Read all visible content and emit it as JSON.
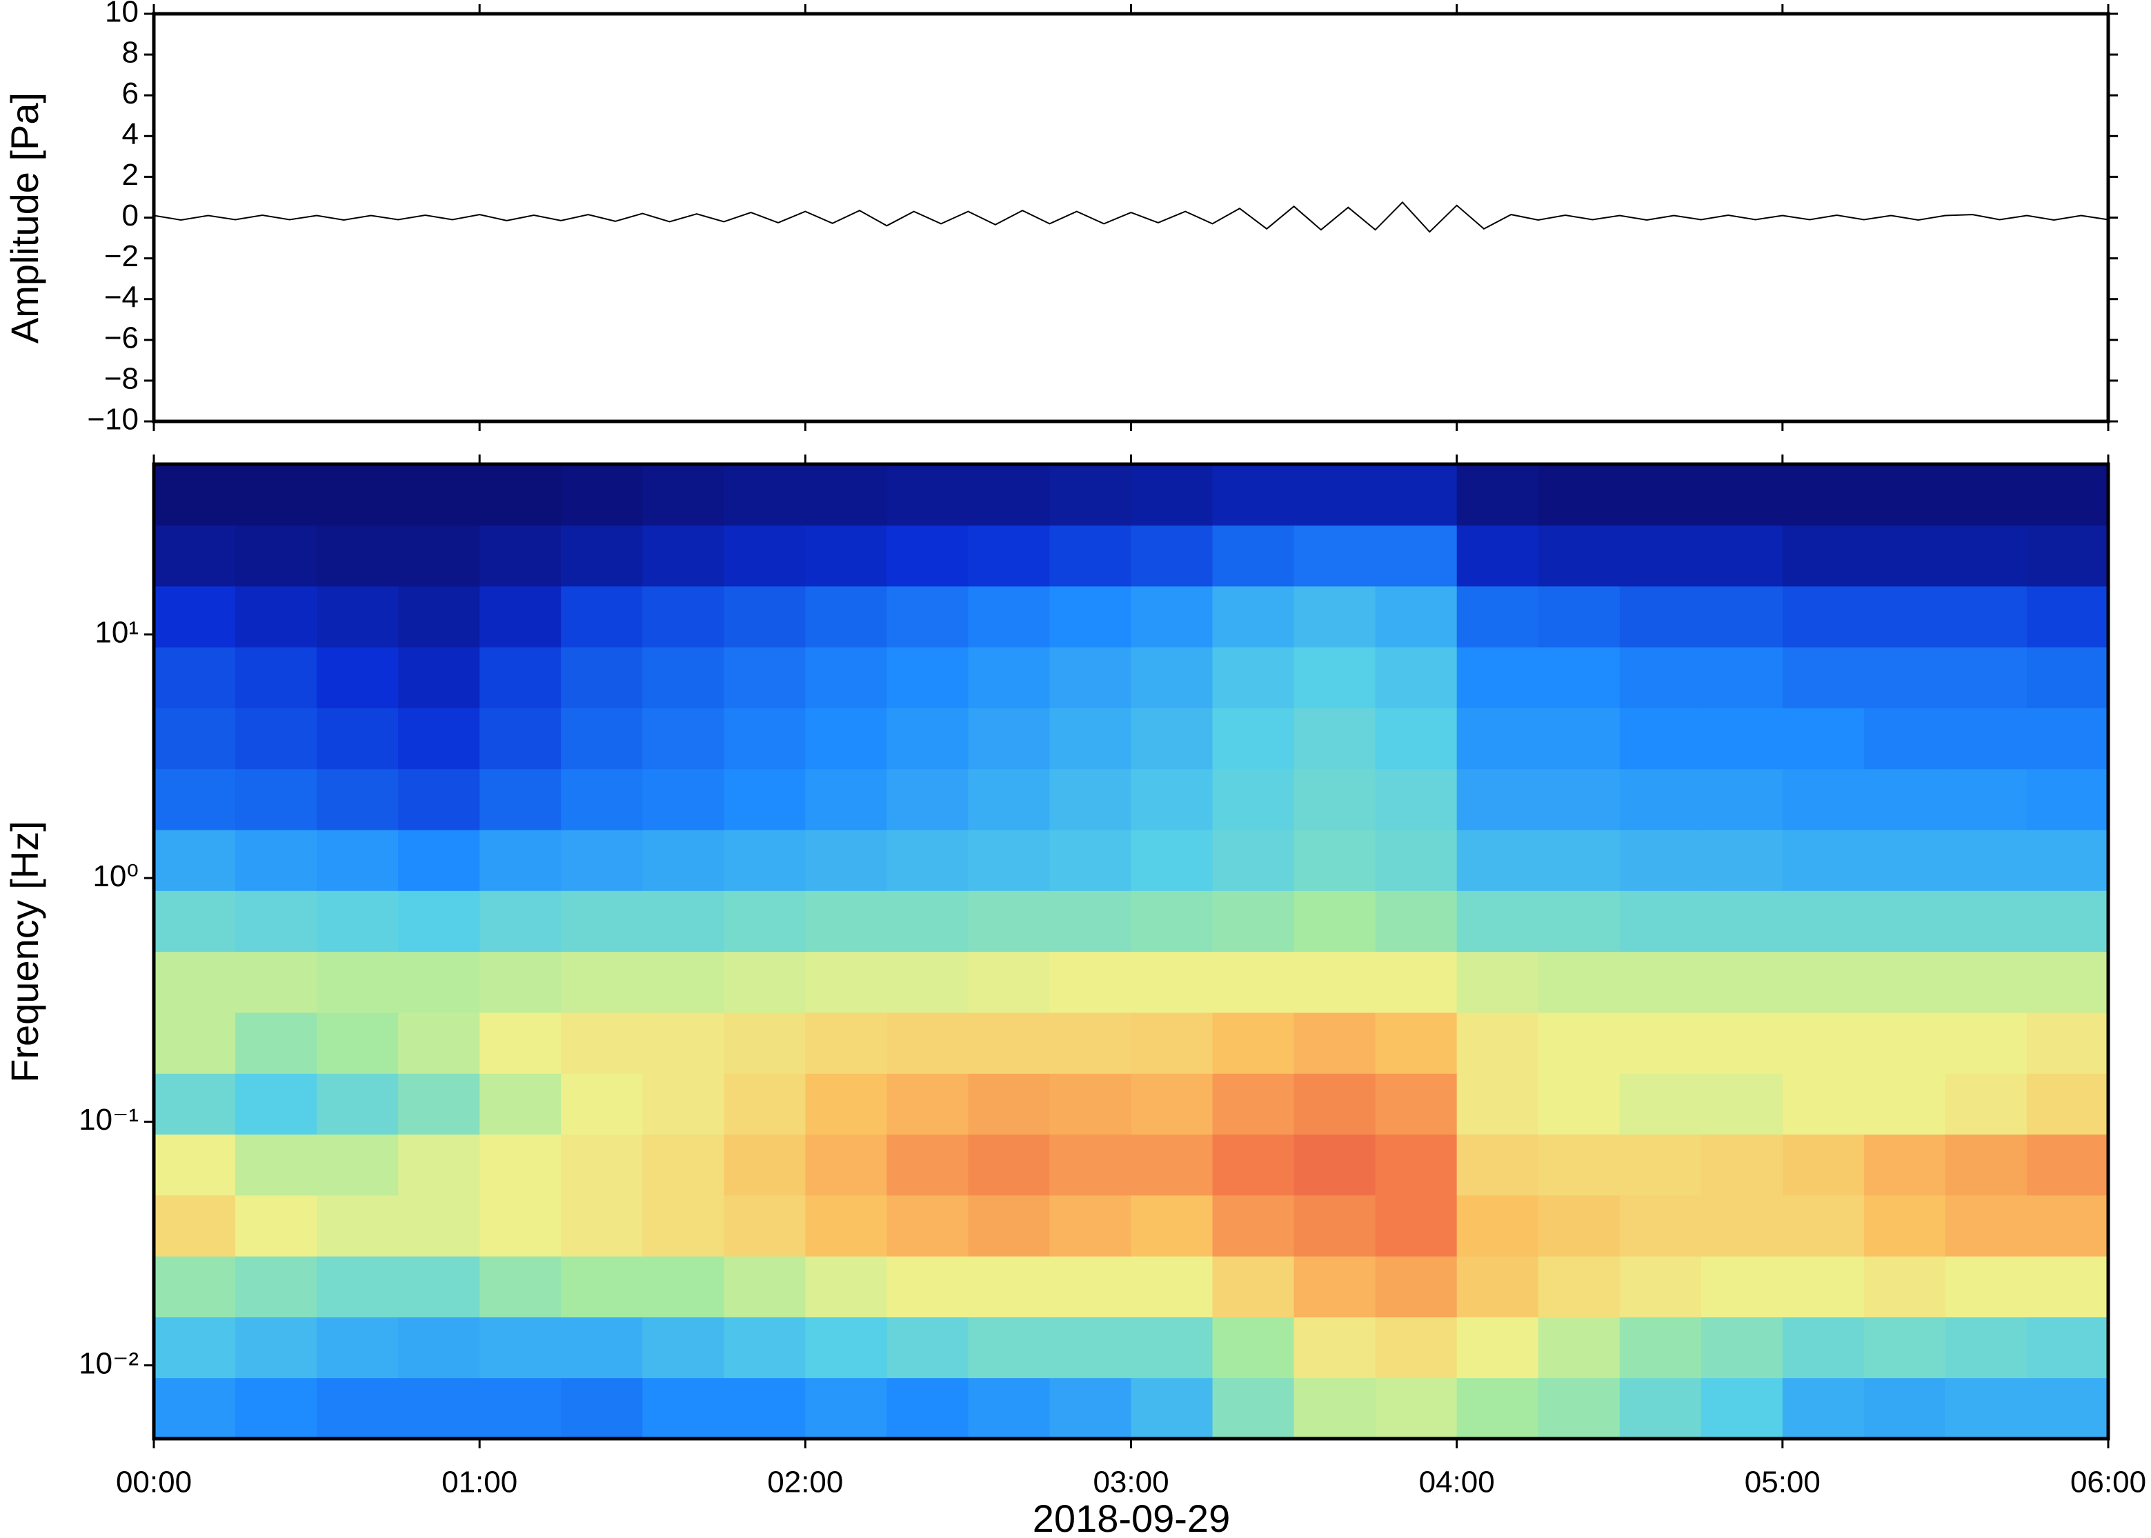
{
  "chart_data": [
    {
      "type": "line",
      "ylabel": "Amplitude [Pa]",
      "color": "#000000",
      "xlim": [
        0,
        360
      ],
      "ylim": [
        -10,
        10
      ],
      "yticks": [
        {
          "value": -10,
          "label": "−10"
        },
        {
          "value": -8,
          "label": "−8"
        },
        {
          "value": -6,
          "label": "−6"
        },
        {
          "value": -4,
          "label": "−4"
        },
        {
          "value": -2,
          "label": "−2"
        },
        0,
        2,
        4,
        6,
        8,
        10
      ],
      "x": [
        0,
        5,
        10,
        15,
        20,
        25,
        30,
        35,
        40,
        45,
        50,
        55,
        60,
        65,
        70,
        75,
        80,
        85,
        90,
        95,
        100,
        105,
        110,
        115,
        120,
        125,
        130,
        135,
        140,
        145,
        150,
        155,
        160,
        165,
        170,
        175,
        180,
        185,
        190,
        195,
        200,
        205,
        210,
        215,
        220,
        225,
        230,
        235,
        240,
        245,
        250,
        255,
        260,
        265,
        270,
        275,
        280,
        285,
        290,
        295,
        300,
        305,
        310,
        315,
        320,
        325,
        330,
        335,
        340,
        345,
        350,
        355,
        360
      ],
      "values": [
        0.1,
        -0.12,
        0.1,
        -0.1,
        0.12,
        -0.1,
        0.1,
        -0.12,
        0.1,
        -0.1,
        0.12,
        -0.1,
        0.15,
        -0.15,
        0.12,
        -0.15,
        0.15,
        -0.18,
        0.2,
        -0.2,
        0.18,
        -0.2,
        0.25,
        -0.25,
        0.3,
        -0.28,
        0.35,
        -0.4,
        0.3,
        -0.3,
        0.3,
        -0.35,
        0.35,
        -0.3,
        0.3,
        -0.3,
        0.25,
        -0.25,
        0.3,
        -0.3,
        0.45,
        -0.55,
        0.55,
        -0.6,
        0.5,
        -0.6,
        0.75,
        -0.7,
        0.6,
        -0.55,
        0.15,
        -0.12,
        0.12,
        -0.1,
        0.1,
        -0.12,
        0.1,
        -0.1,
        0.12,
        -0.1,
        0.1,
        -0.1,
        0.12,
        -0.1,
        0.1,
        -0.12,
        0.1,
        0.15,
        -0.1,
        0.1,
        -0.12,
        0.1,
        -0.1
      ]
    },
    {
      "type": "heatmap",
      "ylabel": "Frequency [Hz]",
      "xlabel": "2018-09-29",
      "log_y": true,
      "xlim": [
        0,
        360
      ],
      "xticks": [
        {
          "value": 0,
          "label": "00:00"
        },
        {
          "value": 60,
          "label": "01:00"
        },
        {
          "value": 120,
          "label": "02:00"
        },
        {
          "value": 180,
          "label": "03:00"
        },
        {
          "value": 240,
          "label": "04:00"
        },
        {
          "value": 300,
          "label": "05:00"
        },
        {
          "value": 360,
          "label": "06:00"
        }
      ],
      "ylim": [
        0.005,
        50
      ],
      "yticks": [
        {
          "value": 0.01,
          "label": "10⁻²"
        },
        {
          "value": 0.1,
          "label": "10⁻¹"
        },
        {
          "value": 1,
          "label": "10⁰"
        },
        {
          "value": 10,
          "label": "10¹"
        }
      ],
      "xbins": [
        0,
        15,
        30,
        45,
        60,
        75,
        90,
        105,
        120,
        135,
        150,
        165,
        180,
        195,
        210,
        225,
        240,
        255,
        270,
        285,
        300,
        315,
        330,
        345,
        360
      ],
      "ybins": [
        0.005,
        0.0089,
        0.0158,
        0.0281,
        0.05,
        0.0889,
        0.158,
        0.281,
        0.5,
        0.889,
        1.58,
        2.81,
        5,
        8.89,
        15.8,
        28.1,
        50
      ],
      "zlim": [
        0,
        1
      ],
      "colorscale": [
        [
          0,
          "#0b0b6b"
        ],
        [
          0.15,
          "#0a2fd6"
        ],
        [
          0.3,
          "#1e8cff"
        ],
        [
          0.42,
          "#56cfe8"
        ],
        [
          0.52,
          "#a6eaa2"
        ],
        [
          0.6,
          "#eef08c"
        ],
        [
          0.7,
          "#fbc262"
        ],
        [
          0.8,
          "#f47c4a"
        ],
        [
          0.9,
          "#dd3f3f"
        ],
        [
          1,
          "#a01010"
        ]
      ],
      "z": [
        [
          0.32,
          0.3,
          0.28,
          0.28,
          0.28,
          0.27,
          0.3,
          0.3,
          0.32,
          0.3,
          0.32,
          0.34,
          0.38,
          0.48,
          0.55,
          0.56,
          0.52,
          0.5,
          0.45,
          0.42,
          0.36,
          0.35,
          0.36,
          0.36
        ],
        [
          0.4,
          0.38,
          0.36,
          0.35,
          0.36,
          0.36,
          0.38,
          0.4,
          0.42,
          0.44,
          0.46,
          0.46,
          0.46,
          0.52,
          0.62,
          0.64,
          0.6,
          0.55,
          0.5,
          0.48,
          0.45,
          0.46,
          0.45,
          0.44
        ],
        [
          0.5,
          0.48,
          0.46,
          0.46,
          0.5,
          0.52,
          0.52,
          0.55,
          0.58,
          0.6,
          0.6,
          0.6,
          0.6,
          0.66,
          0.72,
          0.74,
          0.68,
          0.64,
          0.62,
          0.6,
          0.6,
          0.62,
          0.6,
          0.6
        ],
        [
          0.65,
          0.6,
          0.58,
          0.58,
          0.6,
          0.62,
          0.64,
          0.66,
          0.7,
          0.72,
          0.74,
          0.72,
          0.7,
          0.76,
          0.78,
          0.8,
          0.7,
          0.68,
          0.66,
          0.66,
          0.66,
          0.7,
          0.72,
          0.72
        ],
        [
          0.6,
          0.55,
          0.55,
          0.58,
          0.6,
          0.62,
          0.64,
          0.68,
          0.72,
          0.76,
          0.78,
          0.76,
          0.76,
          0.8,
          0.82,
          0.8,
          0.66,
          0.65,
          0.65,
          0.66,
          0.68,
          0.72,
          0.74,
          0.76
        ],
        [
          0.45,
          0.42,
          0.45,
          0.48,
          0.55,
          0.6,
          0.62,
          0.65,
          0.7,
          0.72,
          0.74,
          0.73,
          0.72,
          0.76,
          0.78,
          0.76,
          0.62,
          0.6,
          0.58,
          0.58,
          0.6,
          0.6,
          0.62,
          0.65
        ],
        [
          0.55,
          0.5,
          0.52,
          0.55,
          0.6,
          0.62,
          0.62,
          0.63,
          0.65,
          0.66,
          0.66,
          0.66,
          0.67,
          0.7,
          0.72,
          0.7,
          0.62,
          0.6,
          0.6,
          0.6,
          0.6,
          0.6,
          0.6,
          0.62
        ],
        [
          0.55,
          0.55,
          0.54,
          0.54,
          0.55,
          0.56,
          0.56,
          0.57,
          0.58,
          0.58,
          0.59,
          0.6,
          0.6,
          0.6,
          0.6,
          0.6,
          0.57,
          0.56,
          0.56,
          0.56,
          0.56,
          0.56,
          0.56,
          0.56
        ],
        [
          0.45,
          0.44,
          0.43,
          0.42,
          0.44,
          0.45,
          0.45,
          0.46,
          0.47,
          0.47,
          0.48,
          0.48,
          0.49,
          0.5,
          0.52,
          0.5,
          0.46,
          0.46,
          0.45,
          0.45,
          0.45,
          0.45,
          0.45,
          0.45
        ],
        [
          0.35,
          0.33,
          0.32,
          0.3,
          0.33,
          0.34,
          0.35,
          0.36,
          0.37,
          0.38,
          0.39,
          0.4,
          0.42,
          0.44,
          0.46,
          0.45,
          0.38,
          0.38,
          0.37,
          0.37,
          0.36,
          0.36,
          0.36,
          0.36
        ],
        [
          0.25,
          0.24,
          0.22,
          0.2,
          0.24,
          0.27,
          0.28,
          0.3,
          0.32,
          0.34,
          0.36,
          0.38,
          0.4,
          0.43,
          0.45,
          0.44,
          0.34,
          0.34,
          0.33,
          0.33,
          0.32,
          0.32,
          0.32,
          0.31
        ],
        [
          0.22,
          0.2,
          0.18,
          0.16,
          0.2,
          0.24,
          0.26,
          0.28,
          0.3,
          0.32,
          0.34,
          0.36,
          0.38,
          0.42,
          0.44,
          0.42,
          0.32,
          0.32,
          0.3,
          0.3,
          0.3,
          0.28,
          0.28,
          0.28
        ],
        [
          0.2,
          0.18,
          0.15,
          0.12,
          0.18,
          0.22,
          0.24,
          0.26,
          0.28,
          0.3,
          0.32,
          0.34,
          0.36,
          0.4,
          0.42,
          0.4,
          0.3,
          0.3,
          0.28,
          0.28,
          0.26,
          0.26,
          0.26,
          0.25
        ],
        [
          0.15,
          0.12,
          0.1,
          0.08,
          0.12,
          0.18,
          0.2,
          0.22,
          0.24,
          0.26,
          0.28,
          0.3,
          0.32,
          0.36,
          0.38,
          0.36,
          0.25,
          0.24,
          0.22,
          0.22,
          0.2,
          0.2,
          0.2,
          0.18
        ],
        [
          0.06,
          0.05,
          0.04,
          0.04,
          0.06,
          0.08,
          0.1,
          0.12,
          0.13,
          0.15,
          0.16,
          0.18,
          0.2,
          0.24,
          0.26,
          0.26,
          0.12,
          0.1,
          0.1,
          0.1,
          0.08,
          0.08,
          0.08,
          0.07
        ],
        [
          0.02,
          0.02,
          0.02,
          0.02,
          0.02,
          0.03,
          0.04,
          0.05,
          0.05,
          0.06,
          0.06,
          0.07,
          0.08,
          0.1,
          0.1,
          0.1,
          0.04,
          0.03,
          0.03,
          0.03,
          0.03,
          0.03,
          0.03,
          0.03
        ]
      ]
    }
  ]
}
